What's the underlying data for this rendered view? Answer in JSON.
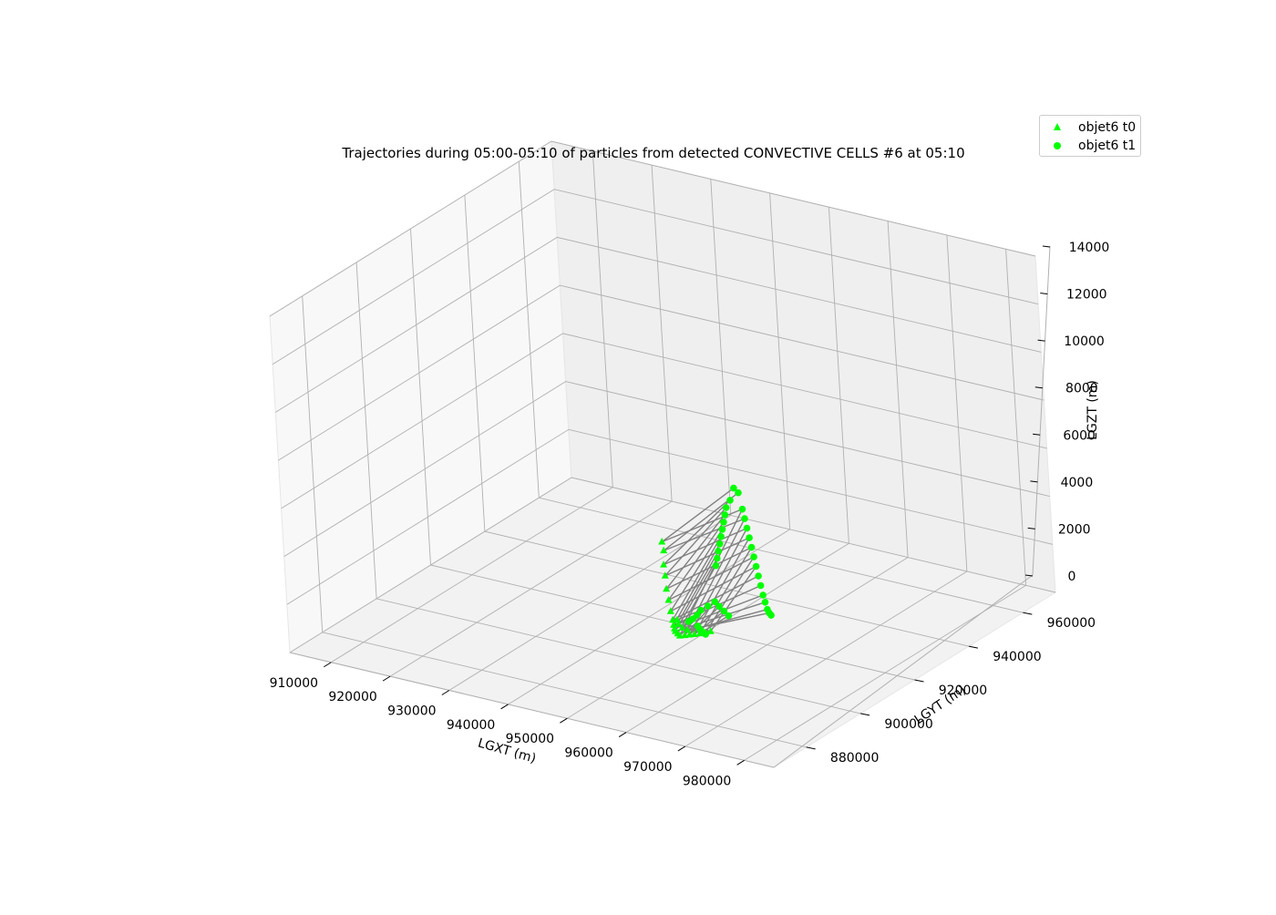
{
  "chart_data": {
    "type": "scatter",
    "projection": "3d",
    "title": "Trajectories during 05:00-05:10 of particles from detected CONVECTIVE CELLS #6 at 05:10",
    "xlabel": "LGXT (m)",
    "ylabel": "LGYT (m)",
    "zlabel": "LGZT (m)",
    "xlim": [
      903000,
      985000
    ],
    "ylim": [
      868000,
      972000
    ],
    "zlim": [
      0,
      14000
    ],
    "xticks": [
      910000,
      920000,
      930000,
      940000,
      950000,
      960000,
      970000,
      980000
    ],
    "xtick_labels": [
      "910000",
      "920000",
      "930000",
      "940000",
      "950000",
      "960000",
      "970000",
      "980000"
    ],
    "yticks": [
      880000,
      900000,
      920000,
      940000,
      960000
    ],
    "ytick_labels": [
      "880000",
      "900000",
      "920000",
      "940000",
      "960000"
    ],
    "zticks": [
      0,
      2000,
      4000,
      6000,
      8000,
      10000,
      12000,
      14000
    ],
    "ztick_labels": [
      "0",
      "2000",
      "4000",
      "6000",
      "8000",
      "10000",
      "12000",
      "14000"
    ],
    "grid": true,
    "legend_position": "top-right",
    "marker_color": "#00ff00",
    "line_color": "#808080",
    "series": [
      {
        "name": "objet6 t0",
        "marker": "triangle",
        "points": [
          [
            942500,
            921000,
            3200
          ],
          [
            942000,
            922500,
            2700
          ],
          [
            942800,
            920500,
            2300
          ],
          [
            943200,
            920000,
            1900
          ],
          [
            943500,
            919500,
            1400
          ],
          [
            944000,
            919000,
            1000
          ],
          [
            944500,
            918500,
            600
          ],
          [
            945000,
            918000,
            300
          ],
          [
            945600,
            917000,
            200
          ],
          [
            946200,
            916000,
            150
          ],
          [
            946800,
            915000,
            150
          ],
          [
            947400,
            914500,
            120
          ],
          [
            948000,
            914000,
            100
          ],
          [
            948600,
            914500,
            120
          ],
          [
            949200,
            915000,
            140
          ],
          [
            949800,
            915500,
            160
          ],
          [
            950400,
            916200,
            180
          ],
          [
            951000,
            917000,
            200
          ],
          [
            951500,
            917800,
            220
          ],
          [
            946000,
            917500,
            400
          ],
          [
            946500,
            916800,
            300
          ],
          [
            947500,
            916000,
            260
          ],
          [
            948500,
            915800,
            240
          ]
        ]
      },
      {
        "name": "objet6 t1",
        "marker": "circle",
        "points": [
          [
            952000,
            928000,
            5500
          ],
          [
            952500,
            928500,
            5300
          ],
          [
            951500,
            927500,
            5000
          ],
          [
            951000,
            927000,
            4700
          ],
          [
            950800,
            926800,
            4400
          ],
          [
            950600,
            926600,
            4100
          ],
          [
            950400,
            926400,
            3800
          ],
          [
            950200,
            926200,
            3500
          ],
          [
            950000,
            926000,
            3200
          ],
          [
            949800,
            925800,
            2900
          ],
          [
            949600,
            925600,
            2600
          ],
          [
            949400,
            925400,
            2300
          ],
          [
            952800,
            929000,
            4600
          ],
          [
            953000,
            929200,
            4200
          ],
          [
            953200,
            929400,
            3800
          ],
          [
            953400,
            929600,
            3400
          ],
          [
            953600,
            929800,
            3000
          ],
          [
            953800,
            930000,
            2600
          ],
          [
            954000,
            930200,
            2200
          ],
          [
            954200,
            930400,
            1800
          ],
          [
            954400,
            930600,
            1400
          ],
          [
            954600,
            930800,
            1000
          ],
          [
            954800,
            931000,
            700
          ],
          [
            955000,
            931200,
            400
          ],
          [
            948500,
            921000,
            700
          ],
          [
            948000,
            920500,
            500
          ],
          [
            947500,
            920000,
            350
          ],
          [
            947000,
            919500,
            250
          ],
          [
            949500,
            921500,
            900
          ],
          [
            950500,
            922000,
            1100
          ],
          [
            951000,
            922500,
            900
          ],
          [
            951500,
            923000,
            700
          ],
          [
            952000,
            923500,
            500
          ],
          [
            949000,
            918500,
            250
          ],
          [
            949500,
            918000,
            200
          ],
          [
            950000,
            917500,
            180
          ],
          [
            950500,
            917200,
            150
          ],
          [
            951000,
            917000,
            130
          ],
          [
            955200,
            931400,
            250
          ],
          [
            955400,
            931600,
            150
          ]
        ]
      }
    ],
    "trajectories": [
      [
        0,
        0
      ],
      [
        1,
        1
      ],
      [
        2,
        2
      ],
      [
        3,
        3
      ],
      [
        4,
        4
      ],
      [
        5,
        5
      ],
      [
        6,
        6
      ],
      [
        7,
        7
      ],
      [
        8,
        8
      ],
      [
        9,
        9
      ],
      [
        10,
        10
      ],
      [
        11,
        11
      ],
      [
        12,
        12
      ],
      [
        13,
        13
      ],
      [
        14,
        14
      ],
      [
        15,
        15
      ],
      [
        16,
        16
      ],
      [
        17,
        17
      ],
      [
        18,
        18
      ],
      [
        19,
        24
      ],
      [
        20,
        25
      ],
      [
        21,
        26
      ],
      [
        22,
        27
      ],
      [
        0,
        12
      ],
      [
        1,
        13
      ],
      [
        2,
        14
      ],
      [
        3,
        15
      ],
      [
        4,
        16
      ],
      [
        5,
        17
      ],
      [
        6,
        18
      ],
      [
        7,
        19
      ],
      [
        8,
        20
      ],
      [
        9,
        21
      ],
      [
        10,
        22
      ],
      [
        11,
        23
      ],
      [
        12,
        28
      ],
      [
        13,
        29
      ],
      [
        14,
        30
      ],
      [
        15,
        31
      ],
      [
        16,
        32
      ],
      [
        17,
        33
      ],
      [
        18,
        34
      ],
      [
        19,
        35
      ],
      [
        20,
        36
      ],
      [
        21,
        37
      ],
      [
        22,
        38
      ]
    ]
  }
}
